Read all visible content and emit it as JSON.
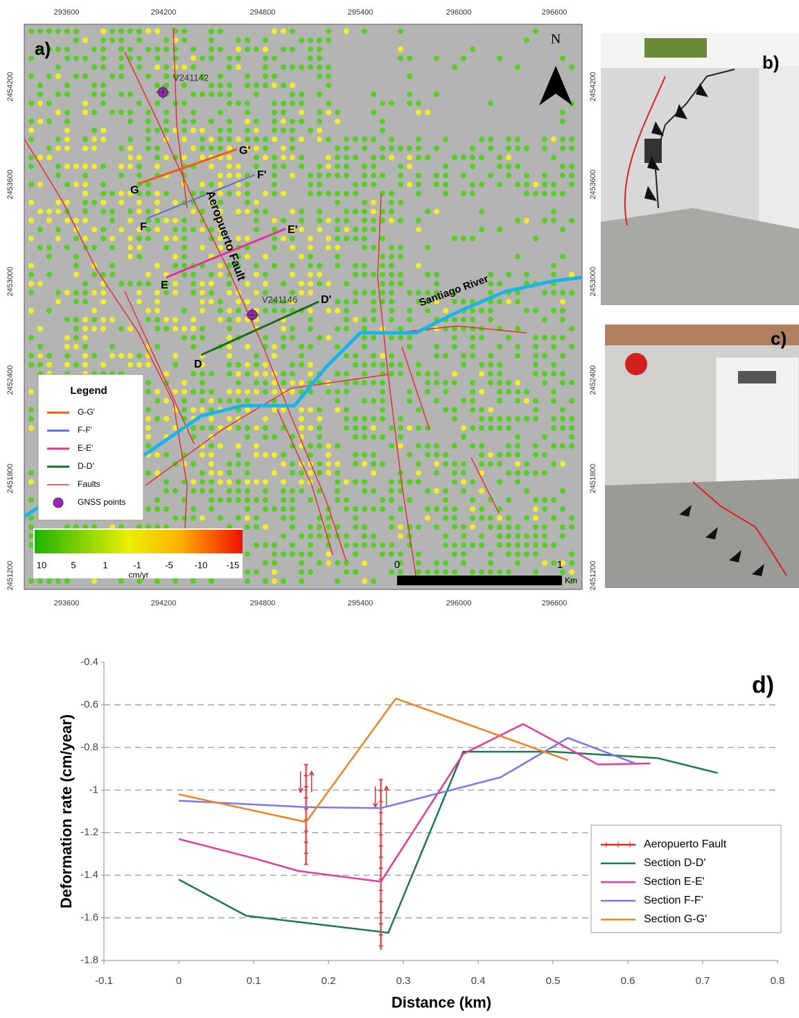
{
  "map": {
    "panel_label": "a)",
    "x_ticks": [
      293600,
      294200,
      294800,
      295400,
      296000,
      296600
    ],
    "y_ticks": [
      2454200,
      2453600,
      2453000,
      2452400,
      2451800,
      2451200
    ],
    "north": "N",
    "gnss_labels": [
      "V241142",
      "V241146"
    ],
    "section_labels": [
      "G",
      "G'",
      "F",
      "F'",
      "E",
      "E'",
      "D",
      "D'"
    ],
    "fault_label": "Aeropuerto Fault",
    "river_label": "Santiago River",
    "legend": {
      "title": "Legend",
      "items": [
        "G-G'",
        "F-F'",
        "E-E'",
        "D-D'",
        "Faults",
        "GNSS points"
      ]
    },
    "colorbar": {
      "labels": [
        "10",
        "5",
        "1",
        "-1",
        "-5",
        "-10",
        "-15"
      ],
      "unit": "cm/yr"
    },
    "scale": {
      "labels": [
        "0",
        "1",
        "Km"
      ]
    }
  },
  "photos": [
    {
      "panel_label": "b)"
    },
    {
      "panel_label": "c)"
    }
  ],
  "chart_data": {
    "type": "line",
    "panel_label": "d)",
    "xlabel": "Distance (km)",
    "ylabel": "Deformation rate (cm/year)",
    "xlim": [
      -0.1,
      0.8
    ],
    "xticks": [
      -0.1,
      0,
      0.1,
      0.2,
      0.3,
      0.4,
      0.5,
      0.6,
      0.7,
      0.8
    ],
    "ylim": [
      -1.8,
      -0.4
    ],
    "yticks": [
      -1.8,
      -1.6,
      -1.4,
      -1.2,
      -1,
      -0.8,
      -0.6,
      -0.4
    ],
    "grid": true,
    "legend_position": "lower right",
    "series": [
      {
        "name": "Aeropuerto Fault",
        "color": "#ff2020",
        "x": [
          0.17,
          0.17,
          null,
          0.27,
          0.27
        ],
        "values": [
          -0.88,
          -1.35,
          null,
          -0.95,
          -1.75
        ]
      },
      {
        "name": "Section D-D'",
        "color": "#1a7a4a",
        "x": [
          0,
          0.09,
          0.28,
          0.38,
          0.5,
          0.64,
          0.72
        ],
        "values": [
          -1.42,
          -1.59,
          -1.67,
          -0.82,
          -0.82,
          -0.85,
          -0.92
        ]
      },
      {
        "name": "Section E-E'",
        "color": "#e8399e",
        "x": [
          0,
          0.1,
          0.16,
          0.27,
          0.38,
          0.46,
          0.56,
          0.63
        ],
        "values": [
          -1.23,
          -1.32,
          -1.38,
          -1.43,
          -0.83,
          -0.69,
          -0.88,
          -0.875
        ]
      },
      {
        "name": "Section F-F'",
        "color": "#7777f0",
        "x": [
          0,
          0.17,
          0.27,
          0.43,
          0.52,
          0.61
        ],
        "values": [
          -1.05,
          -1.08,
          -1.085,
          -0.94,
          -0.755,
          -0.875
        ]
      },
      {
        "name": "Section G-G'",
        "color": "#f58220",
        "x": [
          0,
          0.17,
          0.29,
          0.52
        ],
        "values": [
          -1.02,
          -1.15,
          -0.57,
          -0.86
        ]
      }
    ]
  }
}
